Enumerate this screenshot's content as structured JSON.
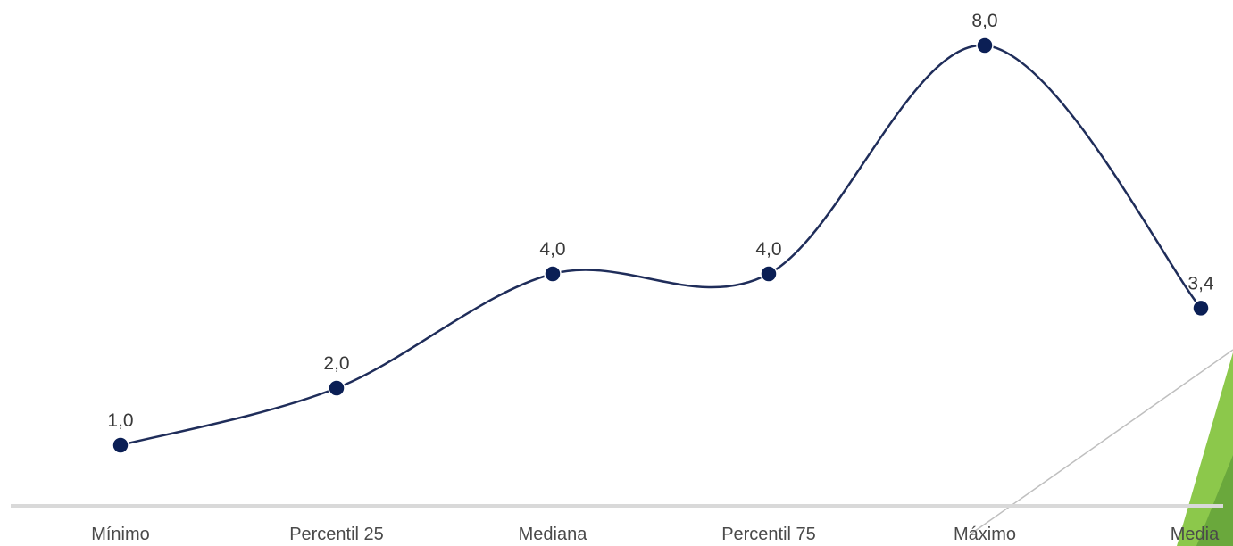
{
  "chart_data": {
    "type": "line",
    "smooth": true,
    "categories": [
      "Mínimo",
      "Percentil 25",
      "Mediana",
      "Percentil 75",
      "Máximo",
      "Media"
    ],
    "series": [
      {
        "values": [
          1.0,
          2.0,
          4.0,
          4.0,
          8.0,
          3.4
        ],
        "data_labels": [
          "1,0",
          "2,0",
          "4,0",
          "4,0",
          "8,0",
          "3,4"
        ]
      }
    ],
    "title": "",
    "xlabel": "",
    "ylabel": "",
    "ylim": [
      0,
      8
    ],
    "grid": false,
    "legend": "none"
  },
  "colors": {
    "line": "#1f2d5a",
    "marker": "#0b1f55",
    "axis": "#d9d9d9",
    "decor_green": "#6aa83c",
    "decor_green_light": "#8cc84b",
    "decor_line": "#bfbfbf"
  }
}
